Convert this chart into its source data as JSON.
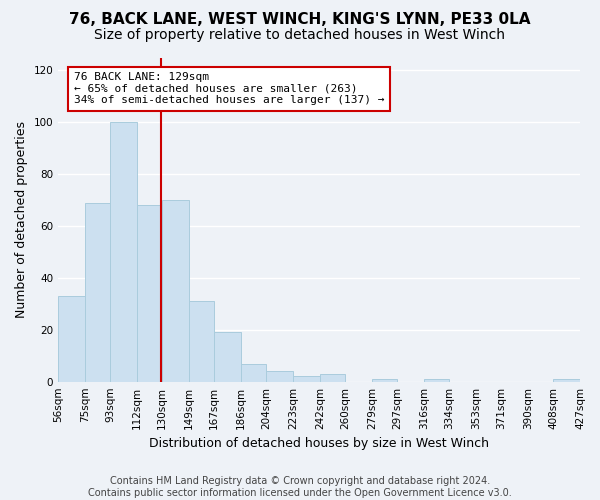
{
  "title": "76, BACK LANE, WEST WINCH, KING'S LYNN, PE33 0LA",
  "subtitle": "Size of property relative to detached houses in West Winch",
  "xlabel": "Distribution of detached houses by size in West Winch",
  "ylabel": "Number of detached properties",
  "bar_color": "#cce0f0",
  "bar_edge_color": "#aaccdd",
  "background_color": "#eef2f7",
  "grid_color": "#ffffff",
  "annotation_text": "76 BACK LANE: 129sqm\n← 65% of detached houses are smaller (263)\n34% of semi-detached houses are larger (137) →",
  "annotation_box_color": "#ffffff",
  "annotation_box_edge_color": "#cc0000",
  "red_line_x": 129,
  "property_line_color": "#cc0000",
  "bins": [
    56,
    75,
    93,
    112,
    130,
    149,
    167,
    186,
    204,
    223,
    242,
    260,
    279,
    297,
    316,
    334,
    353,
    371,
    390,
    408,
    427
  ],
  "bin_labels": [
    "56sqm",
    "75sqm",
    "93sqm",
    "112sqm",
    "130sqm",
    "149sqm",
    "167sqm",
    "186sqm",
    "204sqm",
    "223sqm",
    "242sqm",
    "260sqm",
    "279sqm",
    "297sqm",
    "316sqm",
    "334sqm",
    "353sqm",
    "371sqm",
    "390sqm",
    "408sqm",
    "427sqm"
  ],
  "bar_heights": [
    33,
    69,
    100,
    68,
    70,
    31,
    19,
    7,
    4,
    2,
    3,
    0,
    1,
    0,
    1,
    0,
    0,
    0,
    0,
    1
  ],
  "ylim": [
    0,
    125
  ],
  "yticks": [
    0,
    20,
    40,
    60,
    80,
    100,
    120
  ],
  "footer": "Contains HM Land Registry data © Crown copyright and database right 2024.\nContains public sector information licensed under the Open Government Licence v3.0.",
  "title_fontsize": 11,
  "subtitle_fontsize": 10,
  "axis_label_fontsize": 9,
  "tick_fontsize": 7.5,
  "footer_fontsize": 7
}
